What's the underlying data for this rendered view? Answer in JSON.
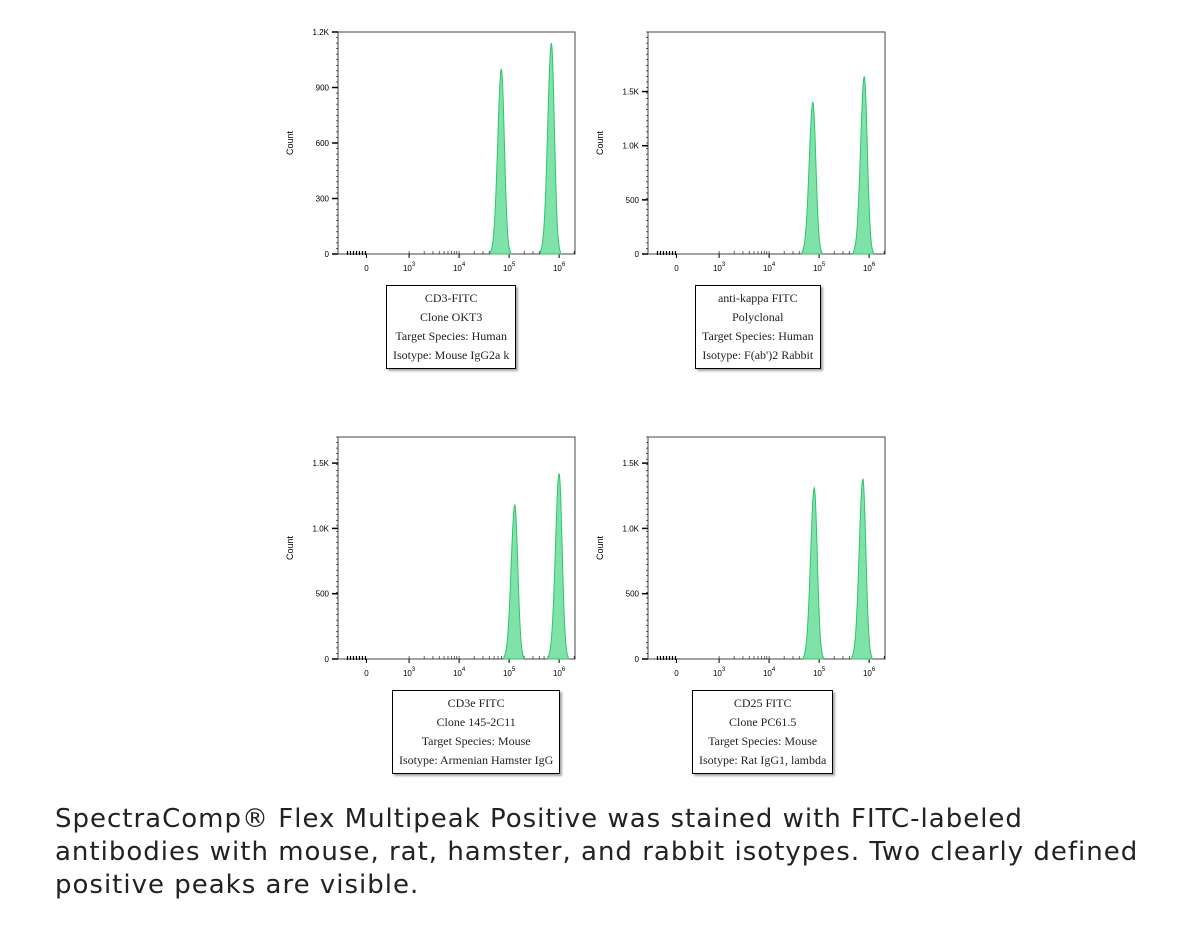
{
  "colors": {
    "peak_fill": "#7fe3a9",
    "peak_stroke": "#2ec46b",
    "axis": "#000000"
  },
  "chart_data": [
    {
      "type": "area",
      "ylabel": "Count",
      "xscale": "biexponential",
      "x_ticks": [
        "0",
        "10^3",
        "10^4",
        "10^5",
        "10^6"
      ],
      "y_ticks": [
        "0",
        "300",
        "600",
        "900",
        "1.2K"
      ],
      "ylim": [
        0,
        1200
      ],
      "peaks": [
        {
          "x": 70000,
          "count": 1000
        },
        {
          "x": 700000,
          "count": 1140
        }
      ],
      "legend": [
        "CD3-FITC",
        "Clone OKT3",
        "Target Species: Human",
        "Isotype: Mouse IgG2a k"
      ]
    },
    {
      "type": "area",
      "ylabel": "Count",
      "xscale": "biexponential",
      "x_ticks": [
        "0",
        "10^3",
        "10^4",
        "10^5",
        "10^6"
      ],
      "y_ticks": [
        "0",
        "500",
        "1.0K",
        "1.5K"
      ],
      "ylim": [
        0,
        2050
      ],
      "peaks": [
        {
          "x": 75000,
          "count": 1400
        },
        {
          "x": 800000,
          "count": 1640
        }
      ],
      "legend": [
        "anti-kappa FITC",
        "Polyclonal",
        "Target Species: Human",
        "Isotype: F(ab')2 Rabbit"
      ]
    },
    {
      "type": "area",
      "ylabel": "Count",
      "xscale": "biexponential",
      "x_ticks": [
        "0",
        "10^3",
        "10^4",
        "10^5",
        "10^6"
      ],
      "y_ticks": [
        "0",
        "500",
        "1.0K",
        "1.5K"
      ],
      "ylim": [
        0,
        1700
      ],
      "peaks": [
        {
          "x": 130000,
          "count": 1180
        },
        {
          "x": 1000000,
          "count": 1420
        }
      ],
      "legend": [
        "CD3e FITC",
        "Clone 145-2C11",
        "Target Species: Mouse",
        "Isotype: Armenian Hamster IgG"
      ]
    },
    {
      "type": "area",
      "ylabel": "Count",
      "xscale": "biexponential",
      "x_ticks": [
        "0",
        "10^3",
        "10^4",
        "10^5",
        "10^6"
      ],
      "y_ticks": [
        "0",
        "500",
        "1.0K",
        "1.5K"
      ],
      "ylim": [
        0,
        1700
      ],
      "peaks": [
        {
          "x": 80000,
          "count": 1310
        },
        {
          "x": 750000,
          "count": 1380
        }
      ],
      "legend": [
        "CD25 FITC",
        "Clone PC61.5",
        "Target Species: Mouse",
        "Isotype: Rat IgG1, lambda"
      ]
    }
  ],
  "caption": "SpectraComp® Flex Multipeak Positive was stained with FITC-labeled antibodies with mouse, rat, hamster, and rabbit isotypes. Two clearly defined positive peaks are visible."
}
